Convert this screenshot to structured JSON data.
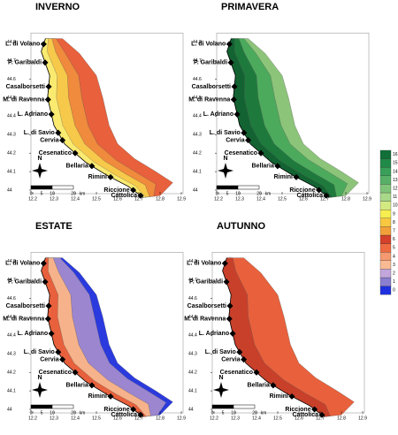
{
  "panels": [
    {
      "title": "INVERNO"
    },
    {
      "title": "PRIMAVERA"
    },
    {
      "title": "ESTATE"
    },
    {
      "title": "AUTUNNO"
    }
  ],
  "towns": [
    "L. di Volano",
    "P. Garibaldi",
    "Casalborsetti",
    "M. di Ravenna",
    "L. Adriano",
    "L. di Savio",
    "Cervia",
    "Cesenatico",
    "Bellaria",
    "Rimini",
    "Riccione",
    "Cattolica"
  ],
  "lat_ticks": [
    44,
    44.1,
    44.2,
    44.3,
    44.4,
    44.5,
    44.6,
    44.7,
    44.8
  ],
  "lon_ticks": [
    12.2,
    12.3,
    12.4,
    12.5,
    12.6,
    12.7,
    12.8,
    12.9
  ],
  "scale_labels": [
    "0",
    "5",
    "10",
    "20",
    "km"
  ],
  "compass": "N",
  "legend": [
    {
      "value": 0,
      "color": "#1f31de"
    },
    {
      "value": 1,
      "color": "#8a7fd0"
    },
    {
      "value": 2,
      "color": "#c3a6dc"
    },
    {
      "value": 3,
      "color": "#f8bb93"
    },
    {
      "value": 4,
      "color": "#f59a70"
    },
    {
      "value": 5,
      "color": "#ee6a40"
    },
    {
      "value": 6,
      "color": "#d4402a"
    },
    {
      "value": 7,
      "color": "#f2a03a"
    },
    {
      "value": 8,
      "color": "#f7c840"
    },
    {
      "value": 9,
      "color": "#f7ee50"
    },
    {
      "value": 10,
      "color": "#d3ea82"
    },
    {
      "value": 11,
      "color": "#a8d888"
    },
    {
      "value": 12,
      "color": "#80c47a"
    },
    {
      "value": 13,
      "color": "#58b068"
    },
    {
      "value": 14,
      "color": "#38a058"
    },
    {
      "value": 15,
      "color": "#208a48"
    },
    {
      "value": 16,
      "color": "#107038"
    }
  ]
}
